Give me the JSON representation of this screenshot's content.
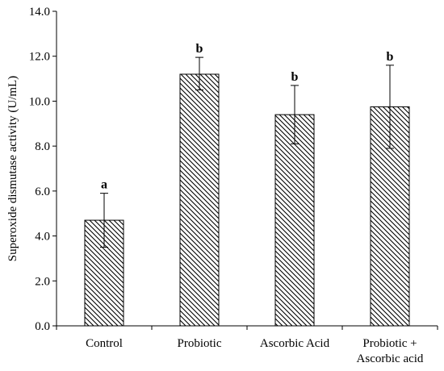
{
  "chart_data": {
    "type": "bar",
    "categories": [
      "Control",
      "Probiotic",
      "Ascorbic Acid",
      "Probiotic + Ascorbic acid"
    ],
    "category_lines": [
      [
        "Control"
      ],
      [
        "Probiotic"
      ],
      [
        "Ascorbic Acid"
      ],
      [
        "Probiotic +",
        "Ascorbic acid"
      ]
    ],
    "values": [
      4.7,
      11.2,
      9.4,
      9.75
    ],
    "error_upper": [
      5.9,
      11.95,
      10.7,
      11.6
    ],
    "error_lower": [
      3.5,
      10.5,
      8.1,
      7.9
    ],
    "significance": [
      "a",
      "b",
      "b",
      "b"
    ],
    "ylabel": "Superoxide dismutase activity (U/mL)",
    "xlabel": "",
    "ylim": [
      0.0,
      14.0
    ],
    "yticks": [
      "0.0",
      "2.0",
      "4.0",
      "6.0",
      "8.0",
      "10.0",
      "12.0",
      "14.0"
    ],
    "grid": false,
    "bar_fill": "diagonal-hatch",
    "colors": {
      "bar_edge": "#000000",
      "hatch": "#000000",
      "background": "#ffffff"
    }
  }
}
